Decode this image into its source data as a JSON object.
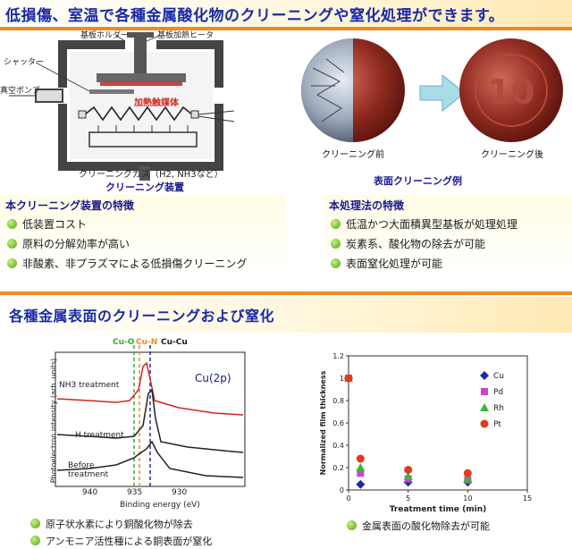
{
  "top_banner": {
    "title": "低損傷、室温で各種金属酸化物のクリーニングや窒化処理ができます。"
  },
  "apparatus": {
    "caption": "クリーニング装置",
    "labels": {
      "holder": "基板ホルダー",
      "heater": "基板加熱ヒータ",
      "shutter": "シャッター",
      "pump": "真空ポンプ",
      "catalyst": "加熱触媒体",
      "gas": "クリーニングガス（H2, NH3など）"
    }
  },
  "coins": {
    "before_label": "クリーニング前",
    "after_label": "クリーニング後",
    "caption": "表面クリーニング例",
    "coin_text": "10"
  },
  "features_left": {
    "title": "本クリーニング装置の特徴",
    "items": [
      "低装置コスト",
      "原料の分解効率が高い",
      "非酸素、非プラズマによる低損傷クリーニング"
    ]
  },
  "features_right": {
    "title": "本処理法の特徴",
    "items": [
      "低温かつ大面積異型基板が処理処理",
      "炭素系、酸化物の除去が可能",
      "表面窒化処理が可能"
    ]
  },
  "second_banner": {
    "title": "各種金属表面のクリーニングおよび窒化"
  },
  "xps": {
    "ylabel": "Photoelectron intensity (arb. units)",
    "xlabel": "Binding energy (eV)",
    "panel_label": "Cu(2p)",
    "top_labels": [
      "Cu-O",
      "Cu-N",
      "Cu-Cu"
    ],
    "spectrum_labels": [
      "NH3 treatment",
      "H treatment",
      "Before treatment"
    ],
    "xticks": [
      "940",
      "935",
      "930"
    ]
  },
  "chart_data": {
    "type": "scatter",
    "xlabel": "Treatment time (min)",
    "ylabel": "Normalized film thickness",
    "xlim": [
      0,
      15
    ],
    "ylim": [
      0,
      1.2
    ],
    "xticks": [
      0,
      5,
      10,
      15
    ],
    "yticks": [
      0,
      0.2,
      0.4,
      0.6,
      0.8,
      1,
      1.2
    ],
    "legend_position": "top-right",
    "series": [
      {
        "name": "Cu",
        "marker": "diamond",
        "color": "#1a2aa8",
        "x": [
          0,
          1,
          5,
          10
        ],
        "y": [
          1.0,
          0.05,
          0.07,
          0.07
        ]
      },
      {
        "name": "Pd",
        "marker": "square",
        "color": "#cc44cc",
        "x": [
          0,
          1,
          5,
          10
        ],
        "y": [
          1.0,
          0.15,
          0.1,
          0.09
        ]
      },
      {
        "name": "Rh",
        "marker": "triangle",
        "color": "#3ab53a",
        "x": [
          0,
          1,
          5,
          10
        ],
        "y": [
          1.0,
          0.2,
          0.12,
          0.1
        ]
      },
      {
        "name": "Pt",
        "marker": "circle",
        "color": "#e23a20",
        "x": [
          0,
          1,
          5,
          10
        ],
        "y": [
          1.0,
          0.28,
          0.18,
          0.15
        ]
      }
    ]
  },
  "bottom_left_notes": [
    "原子状水素により銅酸化物が除去",
    "アンモニア活性種による銅表面が窒化"
  ],
  "bottom_right_note": "金属表面の酸化物除去が可能"
}
